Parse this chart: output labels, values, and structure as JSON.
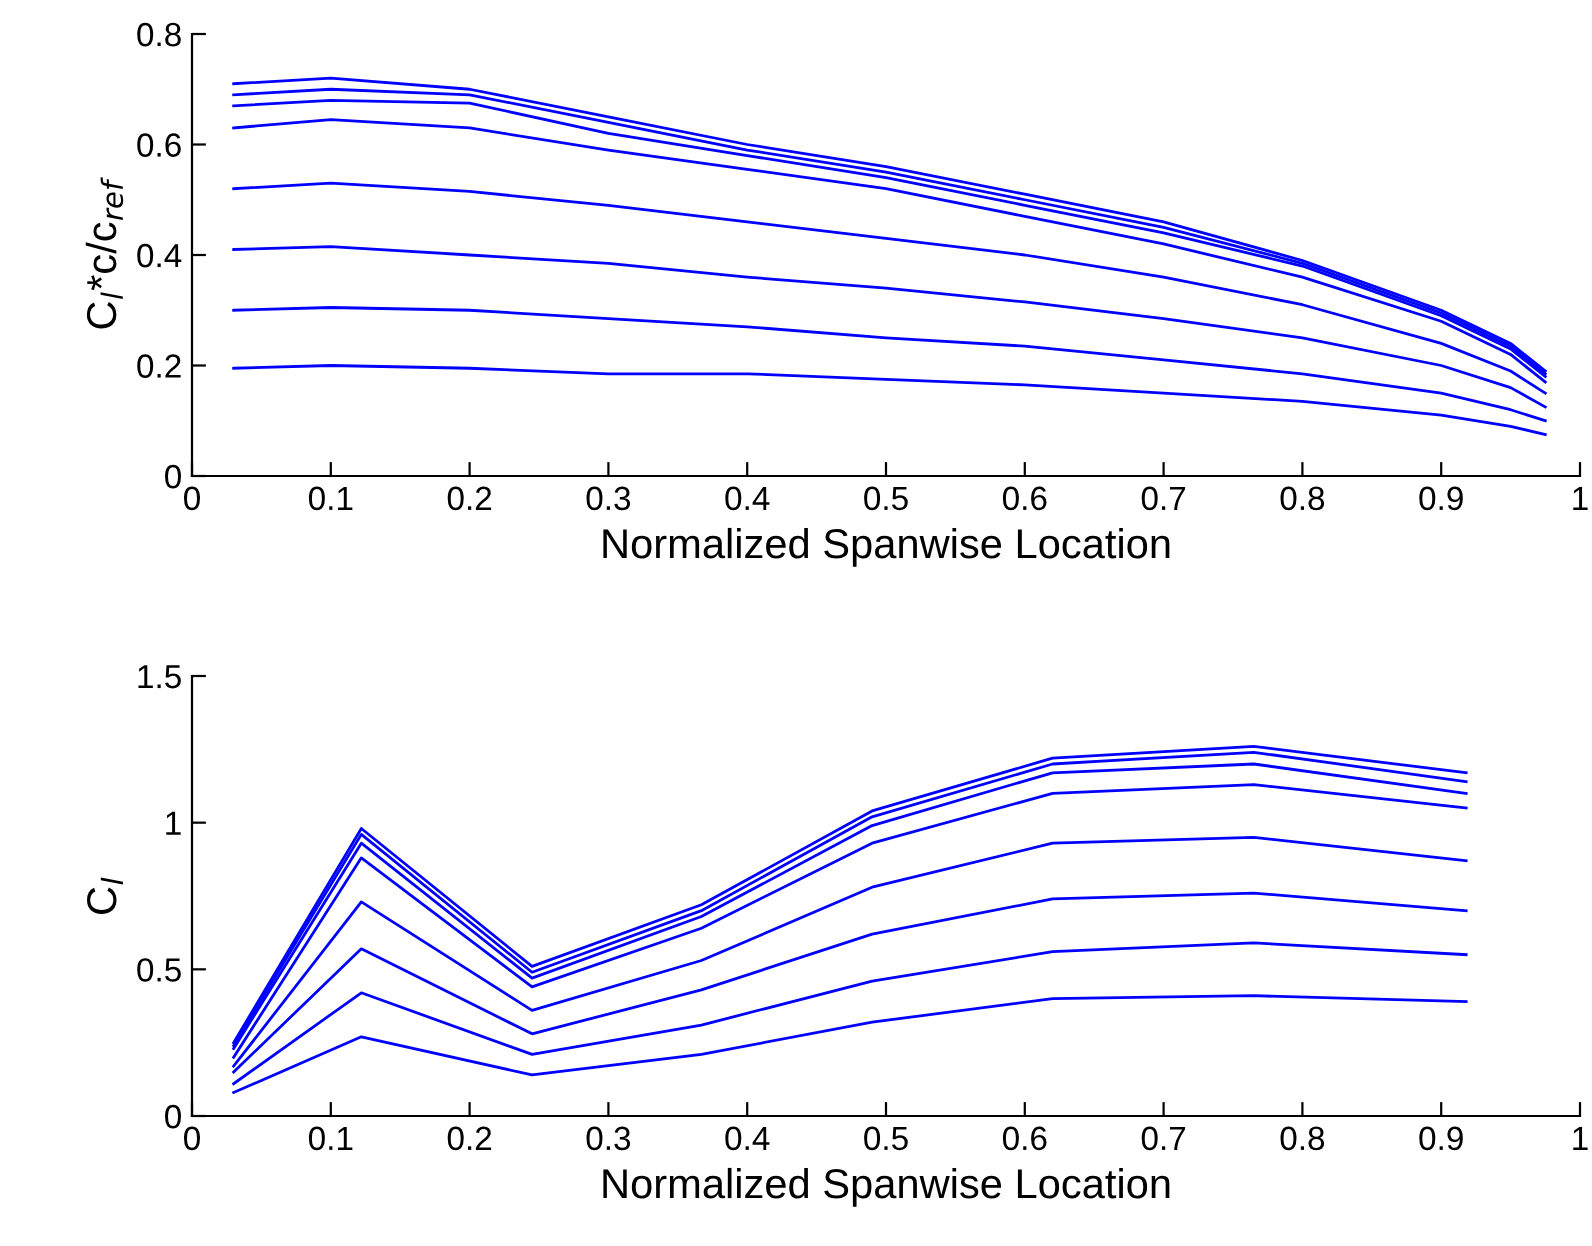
{
  "chart_data": [
    {
      "type": "line",
      "xlabel": "Normalized Spanwise Location",
      "ylabel": "C$_{l}$*c/c$_{ref}$",
      "xlim": [
        0,
        1
      ],
      "ylim": [
        0,
        0.8
      ],
      "xticks": [
        0,
        0.1,
        0.2,
        0.3,
        0.4,
        0.5,
        0.6,
        0.7,
        0.8,
        0.9,
        1
      ],
      "yticks": [
        0,
        0.2,
        0.4,
        0.6,
        0.8
      ],
      "grid": false,
      "legend": false,
      "x": [
        0.03,
        0.1,
        0.2,
        0.3,
        0.4,
        0.5,
        0.6,
        0.7,
        0.8,
        0.9,
        0.95,
        0.975
      ],
      "series": [
        {
          "color": "#0000ff",
          "values": [
            0.71,
            0.72,
            0.7,
            0.65,
            0.6,
            0.56,
            0.51,
            0.46,
            0.39,
            0.3,
            0.24,
            0.19
          ]
        },
        {
          "color": "#0000ff",
          "values": [
            0.69,
            0.7,
            0.69,
            0.64,
            0.59,
            0.55,
            0.5,
            0.45,
            0.385,
            0.295,
            0.235,
            0.185
          ]
        },
        {
          "color": "#0000ff",
          "values": [
            0.67,
            0.68,
            0.675,
            0.62,
            0.58,
            0.54,
            0.49,
            0.44,
            0.38,
            0.29,
            0.23,
            0.18
          ]
        },
        {
          "color": "#0000ff",
          "values": [
            0.63,
            0.645,
            0.63,
            0.59,
            0.555,
            0.52,
            0.47,
            0.42,
            0.36,
            0.28,
            0.22,
            0.17
          ]
        },
        {
          "color": "#0000ff",
          "values": [
            0.52,
            0.53,
            0.515,
            0.49,
            0.46,
            0.43,
            0.4,
            0.36,
            0.31,
            0.24,
            0.19,
            0.15
          ]
        },
        {
          "color": "#0000ff",
          "values": [
            0.41,
            0.415,
            0.4,
            0.385,
            0.36,
            0.34,
            0.315,
            0.285,
            0.25,
            0.2,
            0.16,
            0.125
          ]
        },
        {
          "color": "#0000ff",
          "values": [
            0.3,
            0.305,
            0.3,
            0.285,
            0.27,
            0.25,
            0.235,
            0.21,
            0.185,
            0.15,
            0.12,
            0.1
          ]
        },
        {
          "color": "#0000ff",
          "values": [
            0.195,
            0.2,
            0.195,
            0.185,
            0.185,
            0.175,
            0.165,
            0.15,
            0.135,
            0.11,
            0.09,
            0.075
          ]
        }
      ]
    },
    {
      "type": "line",
      "xlabel": "Normalized Spanwise Location",
      "ylabel": "C$_{l}$",
      "xlim": [
        0,
        1
      ],
      "ylim": [
        0,
        1.5
      ],
      "xticks": [
        0,
        0.1,
        0.2,
        0.3,
        0.4,
        0.5,
        0.6,
        0.7,
        0.8,
        0.9,
        1
      ],
      "yticks": [
        0,
        0.5,
        1,
        1.5
      ],
      "grid": false,
      "legend": false,
      "x": [
        0.03,
        0.122,
        0.245,
        0.367,
        0.49,
        0.62,
        0.765,
        0.918
      ],
      "series": [
        {
          "color": "#0000ff",
          "values": [
            0.25,
            0.98,
            0.51,
            0.72,
            1.04,
            1.22,
            1.26,
            1.17
          ]
        },
        {
          "color": "#0000ff",
          "values": [
            0.24,
            0.96,
            0.49,
            0.7,
            1.02,
            1.2,
            1.24,
            1.14
          ]
        },
        {
          "color": "#0000ff",
          "values": [
            0.23,
            0.93,
            0.47,
            0.68,
            0.99,
            1.17,
            1.2,
            1.1
          ]
        },
        {
          "color": "#0000ff",
          "values": [
            0.2,
            0.88,
            0.44,
            0.64,
            0.93,
            1.1,
            1.13,
            1.05
          ]
        },
        {
          "color": "#0000ff",
          "values": [
            0.17,
            0.73,
            0.36,
            0.53,
            0.78,
            0.93,
            0.95,
            0.87
          ]
        },
        {
          "color": "#0000ff",
          "values": [
            0.15,
            0.57,
            0.28,
            0.43,
            0.62,
            0.74,
            0.76,
            0.7
          ]
        },
        {
          "color": "#0000ff",
          "values": [
            0.11,
            0.42,
            0.21,
            0.31,
            0.46,
            0.56,
            0.59,
            0.55
          ]
        },
        {
          "color": "#0000ff",
          "values": [
            0.08,
            0.27,
            0.14,
            0.21,
            0.32,
            0.4,
            0.41,
            0.39
          ]
        }
      ]
    }
  ]
}
